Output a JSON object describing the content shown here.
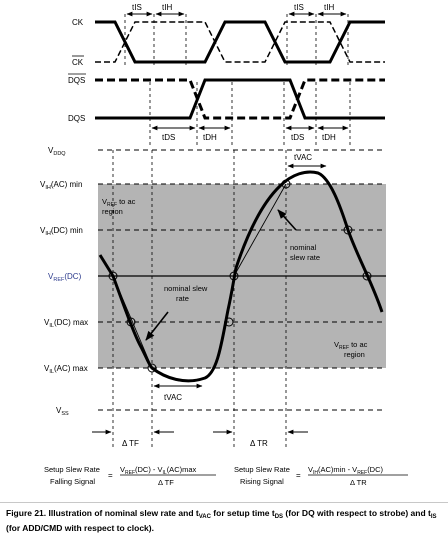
{
  "signals": {
    "ck": "CK",
    "ck_bar": "CK",
    "dqs_bar": "DQS",
    "dqs": "DQS"
  },
  "timing_labels": {
    "tis_1": "tIS",
    "tih_1": "tIH",
    "tis_2": "tIS",
    "tih_2": "tIH",
    "tds_1": "tDS",
    "tdh_1": "tDH",
    "tds_2": "tDS",
    "tdh_2": "tDH",
    "tvac_top": "tVAC",
    "tvac_bottom": "tVAC",
    "delta_tf": "Δ TF",
    "delta_tr": "Δ TR"
  },
  "levels": {
    "vddq": "V",
    "vddq_sub": "DDQ",
    "vih_ac": "V",
    "vih_ac_sub": "IH",
    "vih_ac_suffix": "(AC) min",
    "vih_dc": "V",
    "vih_dc_sub": "IH",
    "vih_dc_suffix": "(DC) min",
    "vref": "V",
    "vref_sub": "REF",
    "vref_suffix": "(DC)",
    "vil_dc": "V",
    "vil_dc_sub": "IL",
    "vil_dc_suffix": "(DC) max",
    "vil_ac": "V",
    "vil_ac_sub": "IL",
    "vil_ac_suffix": "(AC) max",
    "vss": "V",
    "vss_sub": "SS"
  },
  "region_labels": {
    "vref_to_ac_top_1": "V",
    "vref_to_ac_top_sub": "REF",
    "vref_to_ac_top_2": " to ac",
    "vref_to_ac_top_3": "region",
    "vref_to_ac_bottom_1": "V",
    "vref_to_ac_bottom_sub": "REF",
    "vref_to_ac_bottom_2": " to ac",
    "vref_to_ac_bottom_3": "region"
  },
  "annotations": {
    "nominal_slew_left_1": "nominal slew",
    "nominal_slew_left_2": "rate",
    "nominal_slew_right_1": "nominal",
    "nominal_slew_right_2": "slew rate"
  },
  "formulas": {
    "setup_fall_1": "Setup Slew Rate",
    "setup_fall_2": "Falling Signal",
    "equals": "=",
    "fall_num": "V",
    "fall_num_sub1": "REF",
    "fall_num_mid": "(DC) - V",
    "fall_num_sub2": "IL",
    "fall_num_end": "(AC)max",
    "fall_den": "Δ TF",
    "setup_rise_1": "Setup Slew Rate",
    "setup_rise_2": "Rising Signal",
    "rise_num": "V",
    "rise_num_sub1": "IH",
    "rise_num_mid": "(AC)min - V",
    "rise_num_sub2": "REF",
    "rise_num_end": "(DC)",
    "rise_den": "Δ TR"
  },
  "caption": {
    "line1a": "Figure 21. Illustration of nominal slew rate and t",
    "line1a_sub": "VAC",
    "line1b": " for setup time t",
    "line1b_sub": "DS",
    "line1c": " (for DQ with respect to strobe) and t",
    "line1c_sub": "IS",
    "line2": "(for ADD/CMD with respect to clock)."
  },
  "colors": {
    "shaded_region": "#b4b4b4",
    "line": "#000000",
    "vref_label": "#2b3a8c"
  }
}
